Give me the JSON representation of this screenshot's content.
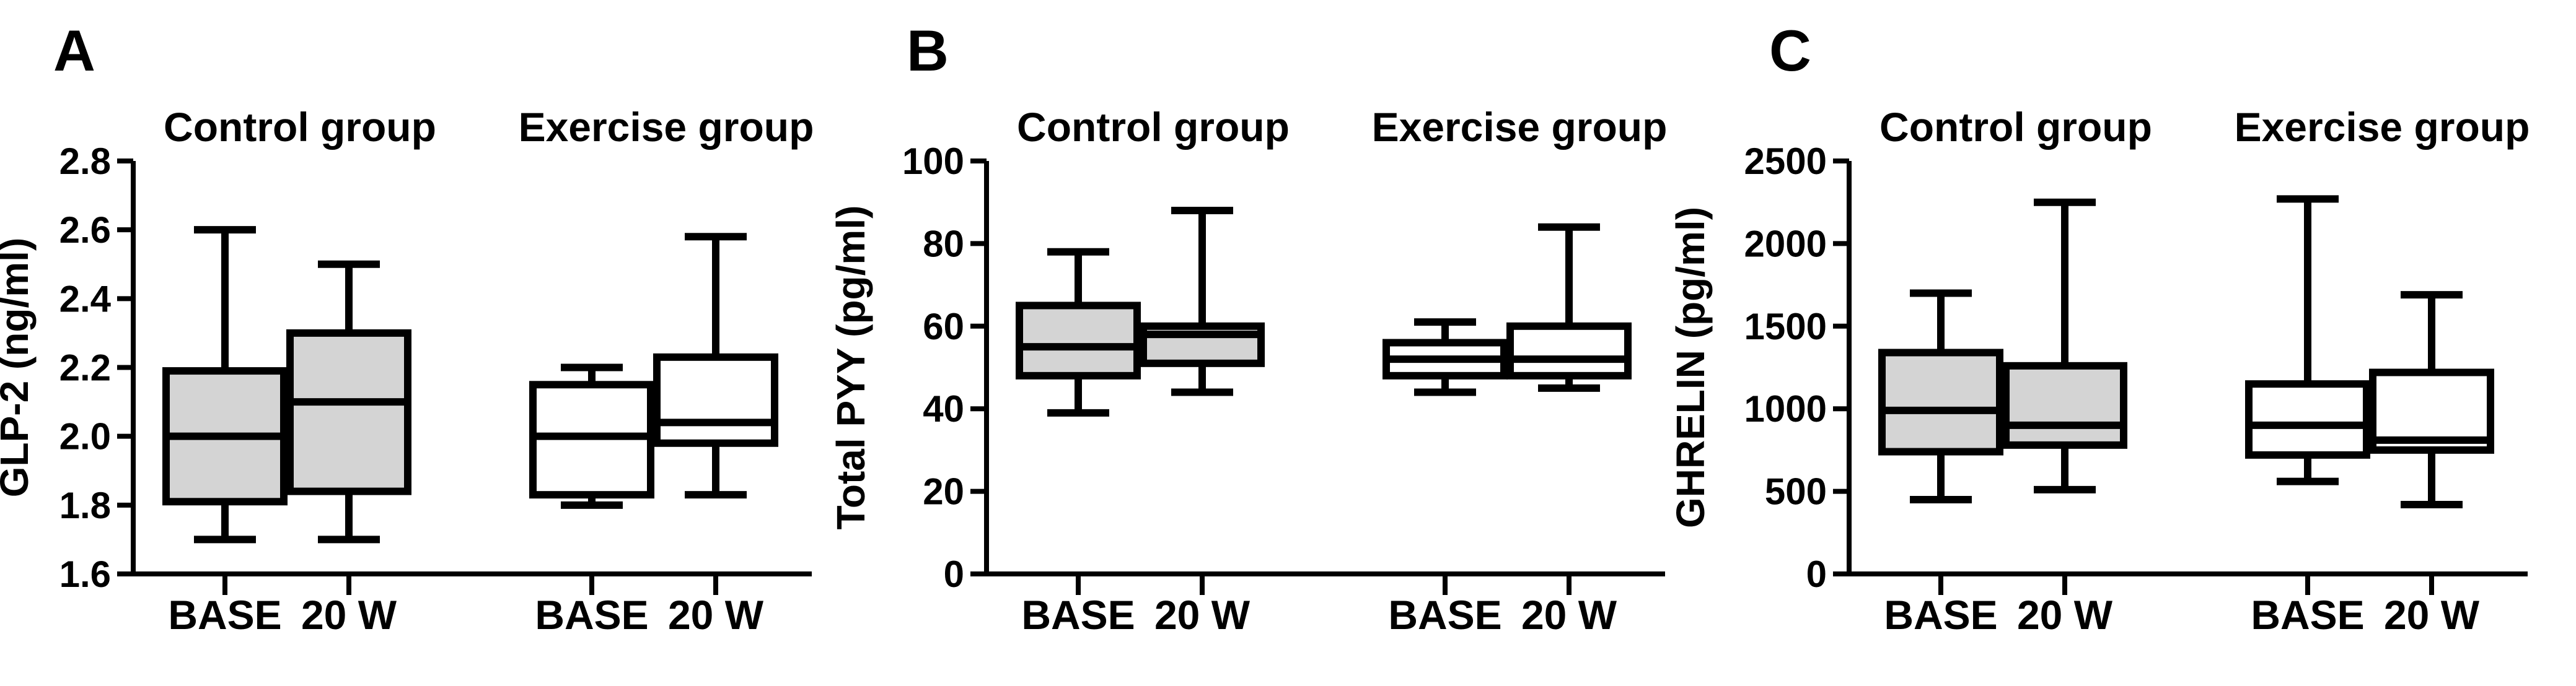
{
  "figure_colors": {
    "background": "#ffffff",
    "stroke": "#000000",
    "control_box_fill": "#d4d4d4",
    "exercise_box_fill": "#ffffff"
  },
  "chart_data": [
    {
      "type": "box",
      "panel_letter": "A",
      "ylabel": "GLP-2 (ng/ml)",
      "ylim": [
        1.6,
        2.8
      ],
      "yticks": [
        1.6,
        1.8,
        2.0,
        2.2,
        2.4,
        2.6,
        2.8
      ],
      "ytick_labels": [
        "1.6",
        "1.8",
        "2.0",
        "2.2",
        "2.4",
        "2.6",
        "2.8"
      ],
      "grid": false,
      "legend": "none",
      "groups": [
        {
          "title": "Control group",
          "box_fill": "#d4d4d4",
          "boxes": [
            {
              "category": "BASE",
              "min": 1.7,
              "q1": 1.81,
              "median": 2.0,
              "q3": 2.19,
              "max": 2.6
            },
            {
              "category": "20 W",
              "min": 1.7,
              "q1": 1.84,
              "median": 2.1,
              "q3": 2.3,
              "max": 2.5
            }
          ]
        },
        {
          "title": "Exercise group",
          "box_fill": "#ffffff",
          "boxes": [
            {
              "category": "BASE",
              "min": 1.8,
              "q1": 1.83,
              "median": 2.0,
              "q3": 2.15,
              "max": 2.2
            },
            {
              "category": "20 W",
              "min": 1.83,
              "q1": 1.98,
              "median": 2.04,
              "q3": 2.23,
              "max": 2.58
            }
          ]
        }
      ]
    },
    {
      "type": "box",
      "panel_letter": "B",
      "ylabel": "Total PYY (pg/ml)",
      "ylim": [
        0,
        100
      ],
      "yticks": [
        0,
        20,
        40,
        60,
        80,
        100
      ],
      "ytick_labels": [
        "0",
        "20",
        "40",
        "60",
        "80",
        "100"
      ],
      "grid": false,
      "legend": "none",
      "groups": [
        {
          "title": "Control group",
          "box_fill": "#d4d4d4",
          "boxes": [
            {
              "category": "BASE",
              "min": 39,
              "q1": 48,
              "median": 55,
              "q3": 65,
              "max": 78
            },
            {
              "category": "20 W",
              "min": 44,
              "q1": 51,
              "median": 58,
              "q3": 60,
              "max": 88
            }
          ]
        },
        {
          "title": "Exercise group",
          "box_fill": "#ffffff",
          "boxes": [
            {
              "category": "BASE",
              "min": 44,
              "q1": 48,
              "median": 52,
              "q3": 56,
              "max": 61
            },
            {
              "category": "20 W",
              "min": 45,
              "q1": 48,
              "median": 52,
              "q3": 60,
              "max": 84
            }
          ]
        }
      ]
    },
    {
      "type": "box",
      "panel_letter": "C",
      "ylabel": "GHRELIN (pg/ml)",
      "ylim": [
        0,
        2500
      ],
      "yticks": [
        0,
        500,
        1000,
        1500,
        2000,
        2500
      ],
      "ytick_labels": [
        "0",
        "500",
        "1000",
        "1500",
        "2000",
        "2500"
      ],
      "grid": false,
      "legend": "none",
      "groups": [
        {
          "title": "Control group",
          "box_fill": "#d4d4d4",
          "boxes": [
            {
              "category": "BASE",
              "min": 450,
              "q1": 740,
              "median": 990,
              "q3": 1340,
              "max": 1700
            },
            {
              "category": "20 W",
              "min": 510,
              "q1": 780,
              "median": 900,
              "q3": 1260,
              "max": 2250
            }
          ]
        },
        {
          "title": "Exercise group",
          "box_fill": "#ffffff",
          "boxes": [
            {
              "category": "BASE",
              "min": 560,
              "q1": 720,
              "median": 900,
              "q3": 1150,
              "max": 2270
            },
            {
              "category": "20 W",
              "min": 420,
              "q1": 750,
              "median": 810,
              "q3": 1220,
              "max": 1690
            }
          ]
        }
      ]
    }
  ]
}
